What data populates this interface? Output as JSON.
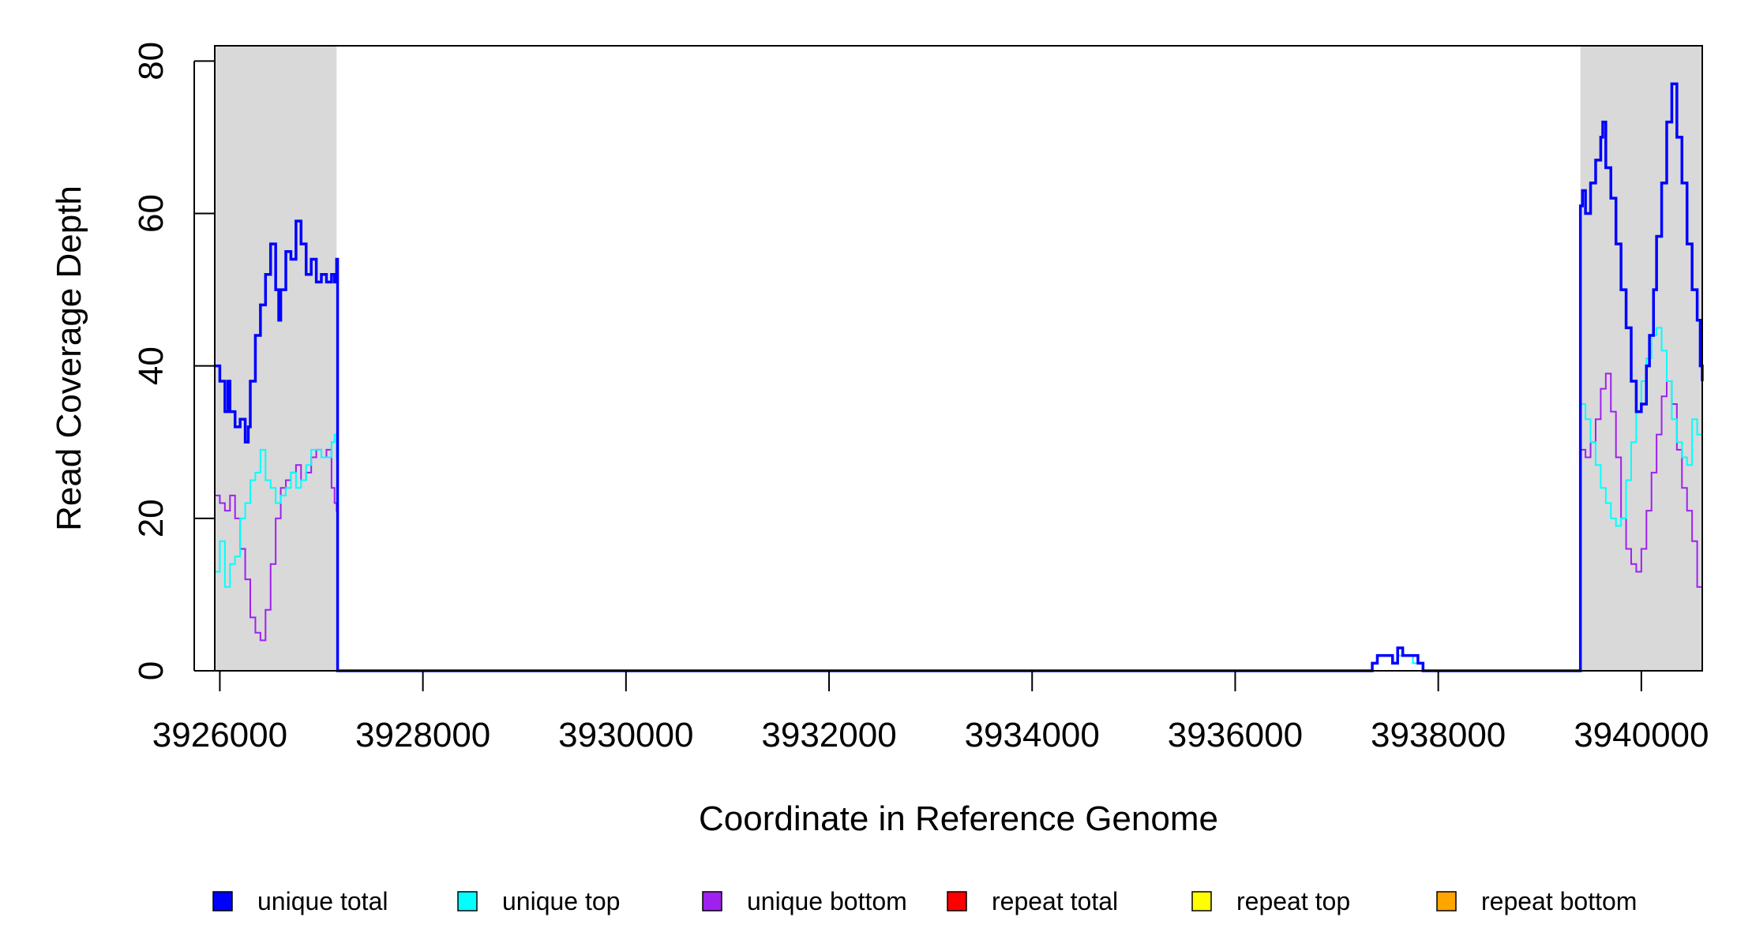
{
  "chart_data": {
    "type": "line",
    "title": "",
    "xlabel": "Coordinate in Reference Genome",
    "ylabel": "Read Coverage Depth",
    "xlim": [
      3925950,
      3940600
    ],
    "ylim": [
      0,
      82
    ],
    "x_ticks": [
      3926000,
      3928000,
      3930000,
      3932000,
      3934000,
      3936000,
      3938000,
      3940000
    ],
    "y_ticks": [
      0,
      20,
      40,
      60,
      80
    ],
    "x_tick_labels": [
      "3926000",
      "3928000",
      "3930000",
      "3932000",
      "3934000",
      "3936000",
      "3938000",
      "3940000"
    ],
    "y_tick_labels": [
      "0",
      "20",
      "40",
      "60",
      "80"
    ],
    "shaded_regions": [
      {
        "x0": 3925950,
        "x1": 3927150
      },
      {
        "x0": 3939400,
        "x1": 3940600
      }
    ],
    "grid": false,
    "legend_position": "bottom",
    "series": [
      {
        "name": "unique total",
        "color": "#0000ff",
        "x": [
          3925950,
          3926000,
          3926050,
          3926080,
          3926100,
          3926150,
          3926200,
          3926250,
          3926280,
          3926300,
          3926350,
          3926400,
          3926450,
          3926500,
          3926550,
          3926580,
          3926600,
          3926650,
          3926700,
          3926750,
          3926800,
          3926850,
          3926900,
          3926950,
          3927000,
          3927050,
          3927100,
          3927130,
          3927150,
          3927160,
          3928000,
          3930000,
          3932000,
          3934000,
          3936000,
          3937300,
          3937350,
          3937400,
          3937500,
          3937550,
          3937600,
          3937650,
          3937700,
          3937750,
          3937800,
          3937850,
          3938000,
          3939390,
          3939400,
          3939420,
          3939450,
          3939500,
          3939550,
          3939600,
          3939620,
          3939650,
          3939700,
          3939750,
          3939800,
          3939850,
          3939900,
          3939950,
          3940000,
          3940050,
          3940080,
          3940120,
          3940150,
          3940200,
          3940250,
          3940300,
          3940350,
          3940400,
          3940450,
          3940500,
          3940550,
          3940580,
          3940600
        ],
        "y": [
          40,
          38,
          34,
          38,
          34,
          32,
          33,
          30,
          32,
          38,
          44,
          48,
          52,
          56,
          50,
          46,
          50,
          55,
          54,
          59,
          56,
          52,
          54,
          51,
          52,
          51,
          52,
          51,
          54,
          0,
          0,
          0,
          0,
          0,
          0,
          0,
          1,
          2,
          2,
          1,
          3,
          2,
          2,
          2,
          1,
          0,
          0,
          0,
          61,
          63,
          60,
          64,
          67,
          70,
          72,
          66,
          62,
          56,
          50,
          45,
          38,
          34,
          35,
          40,
          44,
          50,
          57,
          64,
          72,
          77,
          70,
          64,
          56,
          50,
          46,
          40,
          38
        ]
      },
      {
        "name": "unique top",
        "color": "#00ffff",
        "x": [
          3925950,
          3926000,
          3926050,
          3926100,
          3926150,
          3926200,
          3926250,
          3926300,
          3926350,
          3926400,
          3926450,
          3926500,
          3926550,
          3926600,
          3926650,
          3926700,
          3926750,
          3926800,
          3926850,
          3926900,
          3926950,
          3927000,
          3927050,
          3927100,
          3927130,
          3927150,
          3927160,
          3928000,
          3930000,
          3932000,
          3934000,
          3936000,
          3937300,
          3937350,
          3937400,
          3937500,
          3937550,
          3937600,
          3937650,
          3937700,
          3937750,
          3937800,
          3937850,
          3938000,
          3939390,
          3939400,
          3939450,
          3939500,
          3939550,
          3939600,
          3939650,
          3939700,
          3939750,
          3939800,
          3939850,
          3939900,
          3939950,
          3940000,
          3940050,
          3940100,
          3940150,
          3940200,
          3940250,
          3940300,
          3940350,
          3940400,
          3940450,
          3940500,
          3940550,
          3940600
        ],
        "y": [
          13,
          17,
          11,
          14,
          15,
          20,
          22,
          25,
          26,
          29,
          25,
          24,
          22,
          23,
          24,
          26,
          24,
          25,
          27,
          29,
          29,
          28,
          28,
          30,
          31,
          28,
          0,
          0,
          0,
          0,
          0,
          0,
          0,
          1,
          2,
          2,
          1,
          2,
          2,
          2,
          1,
          1,
          0,
          0,
          0,
          35,
          33,
          30,
          27,
          24,
          22,
          20,
          19,
          20,
          25,
          30,
          34,
          38,
          41,
          44,
          45,
          42,
          38,
          33,
          30,
          28,
          27,
          33,
          31,
          30
        ]
      },
      {
        "name": "unique bottom",
        "color": "#a020f0",
        "x": [
          3925950,
          3926000,
          3926050,
          3926100,
          3926150,
          3926200,
          3926250,
          3926300,
          3926350,
          3926400,
          3926450,
          3926500,
          3926550,
          3926600,
          3926650,
          3926700,
          3926750,
          3926800,
          3926850,
          3926900,
          3926950,
          3927000,
          3927050,
          3927100,
          3927130,
          3927150,
          3927160,
          3928000,
          3930000,
          3932000,
          3934000,
          3936000,
          3937300,
          3937350,
          3937400,
          3937500,
          3937550,
          3937600,
          3937650,
          3937700,
          3937750,
          3937800,
          3937850,
          3938000,
          3939390,
          3939400,
          3939450,
          3939500,
          3939550,
          3939600,
          3939650,
          3939700,
          3939750,
          3939800,
          3939850,
          3939900,
          3939950,
          3940000,
          3940050,
          3940100,
          3940150,
          3940200,
          3940250,
          3940300,
          3940350,
          3940400,
          3940450,
          3940500,
          3940550,
          3940600
        ],
        "y": [
          23,
          22,
          21,
          23,
          20,
          16,
          12,
          7,
          5,
          4,
          8,
          14,
          20,
          24,
          25,
          26,
          27,
          25,
          26,
          28,
          29,
          28,
          29,
          24,
          22,
          21,
          0,
          0,
          0,
          0,
          0,
          0,
          0,
          1,
          2,
          2,
          1,
          2,
          2,
          2,
          2,
          1,
          0,
          0,
          0,
          29,
          28,
          30,
          33,
          37,
          39,
          34,
          28,
          20,
          16,
          14,
          13,
          16,
          21,
          26,
          31,
          36,
          38,
          35,
          29,
          24,
          21,
          17,
          11,
          8
        ]
      },
      {
        "name": "repeat total",
        "color": "#ff0000",
        "x": [
          3925950,
          3940600
        ],
        "y": [
          0,
          0
        ]
      },
      {
        "name": "repeat top",
        "color": "#ffff00",
        "x": [
          3925950,
          3940600
        ],
        "y": [
          0,
          0
        ]
      },
      {
        "name": "repeat bottom",
        "color": "#ffa500",
        "x": [
          3925950,
          3940600
        ],
        "y": [
          0,
          0
        ]
      }
    ]
  }
}
